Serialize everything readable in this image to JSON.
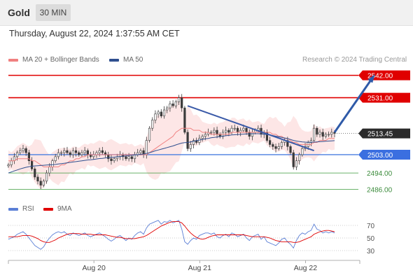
{
  "header": {
    "instrument": "Gold",
    "timeframe": "30 MIN"
  },
  "timestamp": "Thursday, August 22, 2024 1:37:55 AM CET",
  "legend": {
    "ma20": {
      "label": "MA 20 + Bollinger Bands",
      "color": "#f08080"
    },
    "ma50": {
      "label": "MA 50",
      "color": "#2f4f8f"
    }
  },
  "copyright": "Research © 2024 Trading Central",
  "rsi_legend": {
    "rsi": {
      "label": "RSI",
      "color": "#5b7fd6"
    },
    "ma9": {
      "label": "9MA",
      "color": "#e00000"
    }
  },
  "chart_data": [
    {
      "type": "candlestick",
      "title": "Gold 30 MIN",
      "x_tick_labels": [
        "Aug 20",
        "Aug 21",
        "Aug 22"
      ],
      "ylim": [
        2482,
        2546
      ],
      "current_price": 2513.45,
      "levels": [
        {
          "value": 2542.0,
          "label": "2542.00",
          "style": "resistance"
        },
        {
          "value": 2531.0,
          "label": "2531.00",
          "style": "resistance"
        },
        {
          "value": 2503.0,
          "label": "2503.00",
          "style": "pivot"
        },
        {
          "value": 2494.0,
          "label": "2494.00",
          "style": "support"
        },
        {
          "value": 2486.0,
          "label": "2486.00",
          "style": "support"
        }
      ],
      "closes": [
        2498,
        2500,
        2502,
        2504,
        2505,
        2506,
        2504,
        2500,
        2496,
        2492,
        2490,
        2488,
        2490,
        2494,
        2497,
        2500,
        2502,
        2504,
        2504,
        2505,
        2504,
        2503,
        2505,
        2504,
        2503,
        2504,
        2505,
        2503,
        2502,
        2503,
        2504,
        2505,
        2504,
        2503,
        2501,
        2500,
        2501,
        2502,
        2503,
        2502,
        2501,
        2502,
        2501,
        2503,
        2504,
        2505,
        2503,
        2510,
        2516,
        2520,
        2523,
        2524,
        2522,
        2525,
        2526,
        2528,
        2527,
        2529,
        2531,
        2526,
        2514,
        2506,
        2508,
        2510,
        2509,
        2511,
        2512,
        2513,
        2514,
        2514,
        2515,
        2513,
        2512,
        2514,
        2515,
        2514,
        2516,
        2516,
        2514,
        2515,
        2516,
        2514,
        2512,
        2514,
        2515,
        2516,
        2513,
        2514,
        2510,
        2508,
        2507,
        2506,
        2507,
        2509,
        2510,
        2507,
        2504,
        2497,
        2500,
        2503,
        2506,
        2507,
        2509,
        2510,
        2516,
        2513,
        2514,
        2512,
        2513,
        2513,
        2514,
        2513.45
      ],
      "series": [
        {
          "name": "MA 20",
          "values": [
            2500,
            2500,
            2500,
            2501,
            2501,
            2501,
            2501,
            2501,
            2500,
            2500,
            2499,
            2498,
            2497,
            2497,
            2497,
            2497,
            2497,
            2497,
            2498,
            2498,
            2499,
            2500,
            2500,
            2501,
            2501,
            2502,
            2502,
            2503,
            2503,
            2503,
            2503,
            2503,
            2503,
            2503,
            2503,
            2503,
            2503,
            2503,
            2503,
            2503,
            2503,
            2503,
            2503,
            2503,
            2503,
            2503,
            2503,
            2503,
            2504,
            2505,
            2506,
            2507,
            2508,
            2509,
            2510,
            2511,
            2512,
            2514,
            2515,
            2516,
            2516,
            2516,
            2516,
            2515,
            2515,
            2515,
            2514,
            2514,
            2514,
            2513,
            2513,
            2513,
            2513,
            2513,
            2513,
            2513,
            2514,
            2514,
            2514,
            2514,
            2514,
            2514,
            2514,
            2514,
            2514,
            2514,
            2514,
            2514,
            2514,
            2514,
            2513,
            2513,
            2512,
            2512,
            2511,
            2511,
            2510,
            2509,
            2509,
            2508,
            2508,
            2508,
            2508,
            2508,
            2509,
            2509,
            2510,
            2510,
            2510,
            2511,
            2511,
            2511
          ]
        },
        {
          "name": "MA 50",
          "values": [
            2494,
            2494.5,
            2495,
            2495.5,
            2496,
            2496.4,
            2496.8,
            2497.1,
            2497.3,
            2497.5,
            2497.6,
            2497.7,
            2497.8,
            2497.9,
            2498,
            2498.1,
            2498.2,
            2498.4,
            2498.6,
            2498.8,
            2499,
            2499.2,
            2499.4,
            2499.6,
            2499.8,
            2500,
            2500.2,
            2500.4,
            2500.5,
            2500.7,
            2500.9,
            2501.1,
            2501.2,
            2501.4,
            2501.5,
            2501.7,
            2501.8,
            2502,
            2502.1,
            2502.3,
            2502.4,
            2502.6,
            2502.7,
            2502.9,
            2503,
            2503.2,
            2503.3,
            2503.6,
            2504,
            2504.4,
            2504.9,
            2505.3,
            2505.7,
            2506.1,
            2506.5,
            2506.9,
            2507.3,
            2507.8,
            2508.3,
            2508.7,
            2508.9,
            2509,
            2509.3,
            2509.6,
            2509.9,
            2510.2,
            2510.5,
            2510.8,
            2511,
            2511.3,
            2511.5,
            2511.7,
            2511.9,
            2512.1,
            2512.3,
            2512.5,
            2512.7,
            2512.8,
            2512.9,
            2513,
            2513.1,
            2513.2,
            2513.2,
            2513.3,
            2513.3,
            2513.3,
            2513.2,
            2513.1,
            2512.9,
            2512.7,
            2512.4,
            2512.1,
            2511.8,
            2511.5,
            2511.2,
            2510.9,
            2510.5,
            2510,
            2509.7,
            2509.5,
            2509.3,
            2509.2,
            2509.1,
            2509.1,
            2509.2,
            2509.3,
            2509.4,
            2509.5,
            2509.6,
            2509.7,
            2509.8,
            2509.9
          ]
        }
      ],
      "annotations": [
        {
          "type": "trendline",
          "from": {
            "bar": 61,
            "value": 2527
          },
          "to": {
            "bar": 104,
            "value": 2505
          }
        },
        {
          "type": "arrow",
          "from": {
            "bar": 111,
            "value": 2514
          },
          "to": {
            "bar": 124,
            "value": 2541
          }
        }
      ]
    },
    {
      "type": "line",
      "title": "RSI",
      "x_tick_labels": [
        "Aug 20",
        "Aug 21",
        "Aug 22"
      ],
      "y_tick_labels": [
        "70",
        "50",
        "30"
      ],
      "ylim": [
        20,
        80
      ],
      "series": [
        {
          "name": "RSI",
          "values": [
            48,
            50,
            52,
            56,
            58,
            60,
            56,
            50,
            44,
            38,
            35,
            32,
            36,
            44,
            50,
            55,
            58,
            60,
            58,
            60,
            56,
            54,
            58,
            56,
            54,
            56,
            58,
            54,
            52,
            54,
            56,
            58,
            55,
            52,
            48,
            45,
            48,
            52,
            54,
            50,
            46,
            50,
            48,
            54,
            58,
            60,
            56,
            66,
            72,
            74,
            76,
            78,
            72,
            76,
            75,
            78,
            74,
            76,
            78,
            64,
            44,
            40,
            46,
            50,
            48,
            54,
            56,
            58,
            58,
            56,
            58,
            52,
            50,
            54,
            56,
            52,
            58,
            56,
            52,
            54,
            56,
            50,
            46,
            52,
            54,
            56,
            48,
            52,
            44,
            42,
            40,
            38,
            42,
            48,
            50,
            44,
            40,
            34,
            46,
            54,
            58,
            56,
            60,
            62,
            72,
            64,
            62,
            58,
            60,
            58,
            60,
            58
          ]
        },
        {
          "name": "9MA",
          "values": [
            52,
            52,
            52,
            52,
            53,
            54,
            54,
            54,
            53,
            51,
            49,
            46,
            44,
            43,
            43,
            45,
            47,
            50,
            52,
            54,
            56,
            57,
            57,
            57,
            57,
            56,
            56,
            56,
            56,
            55,
            55,
            55,
            55,
            55,
            54,
            53,
            52,
            51,
            51,
            50,
            49,
            49,
            49,
            49,
            50,
            51,
            52,
            54,
            57,
            60,
            63,
            66,
            69,
            71,
            73,
            75,
            76,
            76,
            76,
            74,
            69,
            63,
            58,
            54,
            51,
            49,
            48,
            49,
            51,
            53,
            54,
            55,
            55,
            55,
            55,
            55,
            55,
            55,
            55,
            55,
            55,
            54,
            53,
            52,
            52,
            52,
            52,
            52,
            51,
            50,
            48,
            46,
            45,
            44,
            44,
            44,
            44,
            43,
            43,
            44,
            46,
            48,
            50,
            52,
            56,
            58,
            60,
            61,
            62,
            62,
            61,
            60
          ]
        }
      ]
    }
  ]
}
